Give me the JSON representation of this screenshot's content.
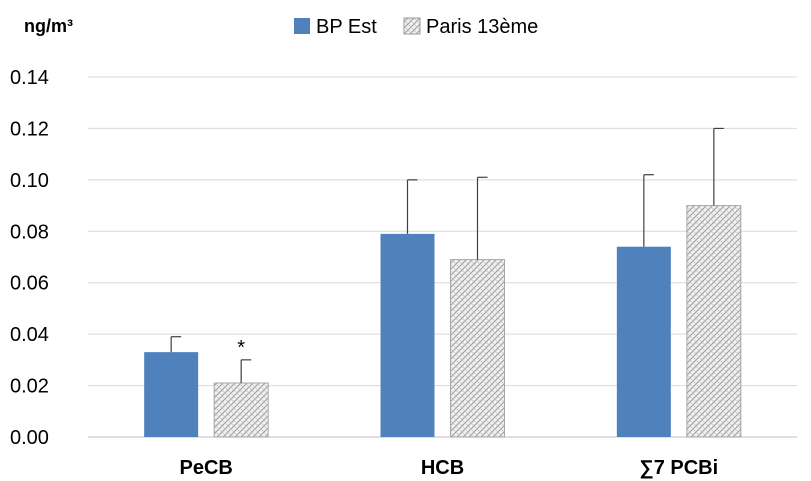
{
  "chart_data": {
    "type": "bar",
    "unit_label": "ng/m³",
    "categories": [
      "PeCB",
      "HCB",
      "∑7 PCBi"
    ],
    "ylim": [
      0,
      0.14
    ],
    "yticks": [
      "0.00",
      "0.02",
      "0.04",
      "0.06",
      "0.08",
      "0.10",
      "0.12",
      "0.14"
    ],
    "grid": true,
    "legend_position": "top",
    "series": [
      {
        "name": "BP Est",
        "color": "#4f81bd",
        "pattern": "solid",
        "values": [
          0.033,
          0.079,
          0.074
        ],
        "error_upper": [
          0.039,
          0.1,
          0.102
        ]
      },
      {
        "name": "Paris 13ème",
        "color": "#d9d9d9",
        "pattern": "hatched",
        "values": [
          0.021,
          0.069,
          0.09
        ],
        "error_upper": [
          0.03,
          0.101,
          0.12
        ]
      }
    ],
    "annotations": [
      {
        "text": "*",
        "category": "PeCB",
        "series": "Paris 13ème"
      }
    ]
  }
}
